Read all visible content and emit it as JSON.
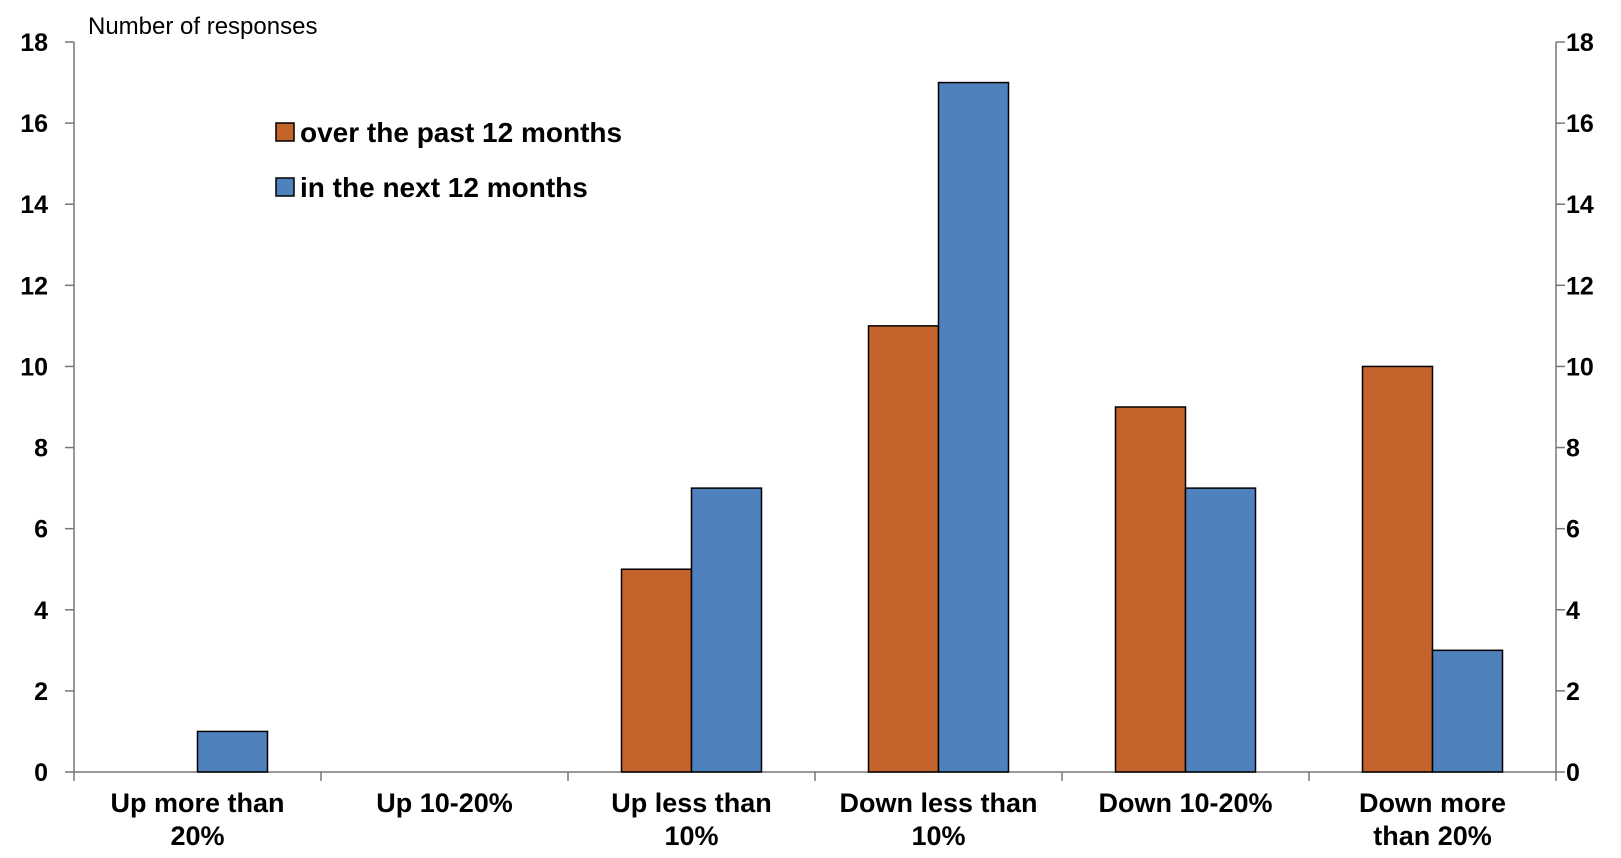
{
  "chart_data": {
    "type": "bar",
    "ylabel": "Number of responses",
    "ylim": [
      0,
      18
    ],
    "yticks": [
      0,
      2,
      4,
      6,
      8,
      10,
      12,
      14,
      16,
      18
    ],
    "categories": [
      [
        "Up more than",
        "20%"
      ],
      [
        "Up 10-20%"
      ],
      [
        "Up less than",
        "10%"
      ],
      [
        "Down less than",
        "10%"
      ],
      [
        "Down 10-20%"
      ],
      [
        "Down more",
        "than 20%"
      ]
    ],
    "series": [
      {
        "name": "over the past 12 months",
        "color": "#C4632C",
        "values": [
          0,
          0,
          5,
          11,
          9,
          10
        ]
      },
      {
        "name": "in the next 12 months",
        "color": "#4F81BD",
        "values": [
          1,
          0,
          7,
          17,
          7,
          3
        ]
      }
    ],
    "legend_placement": "top-left inside plot",
    "grid": false,
    "right_axis_mirror": true
  }
}
